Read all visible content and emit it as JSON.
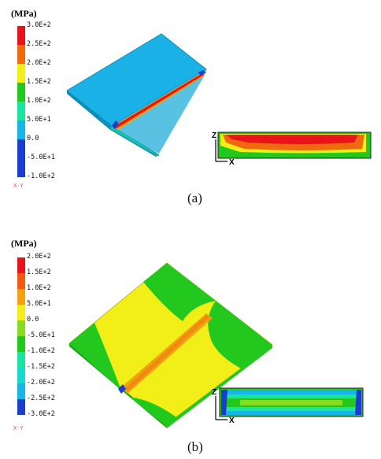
{
  "panel_a": {
    "unit_label": "(MPa)",
    "legend": [
      {
        "label": "3.0E+2",
        "color": "#e8141a"
      },
      {
        "label": "2.5E+2",
        "color": "#ef6a0e"
      },
      {
        "label": "2.0E+2",
        "color": "#f59a10"
      },
      {
        "label": "1.5E+2",
        "color": "#f2ef18"
      },
      {
        "label": "1.0E+2",
        "color": "#22c81e"
      },
      {
        "label": "5.0E+1",
        "color": "#18e6a0"
      },
      {
        "label": "0.0",
        "color": "#16b6e8"
      },
      {
        "label": "-5.0E+1",
        "color": "#1a3ccf"
      },
      {
        "label": "-1.0E+2",
        "color": "#1a3ccf"
      }
    ],
    "triad_label": "X-Y",
    "section_axes": {
      "z": "Z",
      "x": "X"
    },
    "caption": "(a)"
  },
  "panel_b": {
    "unit_label": "(MPa)",
    "legend": [
      {
        "label": "2.0E+2",
        "color": "#e8141a"
      },
      {
        "label": "1.5E+2",
        "color": "#ef5a0e"
      },
      {
        "label": "1.0E+2",
        "color": "#f5a010"
      },
      {
        "label": "5.0E+1",
        "color": "#f2ef18"
      },
      {
        "label": "0.0",
        "color": "#86dc1e"
      },
      {
        "label": "-5.0E+1",
        "color": "#22c81e"
      },
      {
        "label": "-1.0E+2",
        "color": "#18e6a0"
      },
      {
        "label": "-1.5E+2",
        "color": "#18d8d0"
      },
      {
        "label": "-2.0E+2",
        "color": "#16b6e8"
      },
      {
        "label": "-2.5E+2",
        "color": "#1a3ccf"
      },
      {
        "label": "-3.0E+2",
        "color": "#1a3ccf"
      }
    ],
    "triad_label": "X-Y",
    "section_axes": {
      "z": "Z",
      "x": "X"
    },
    "caption": "(b)"
  }
}
